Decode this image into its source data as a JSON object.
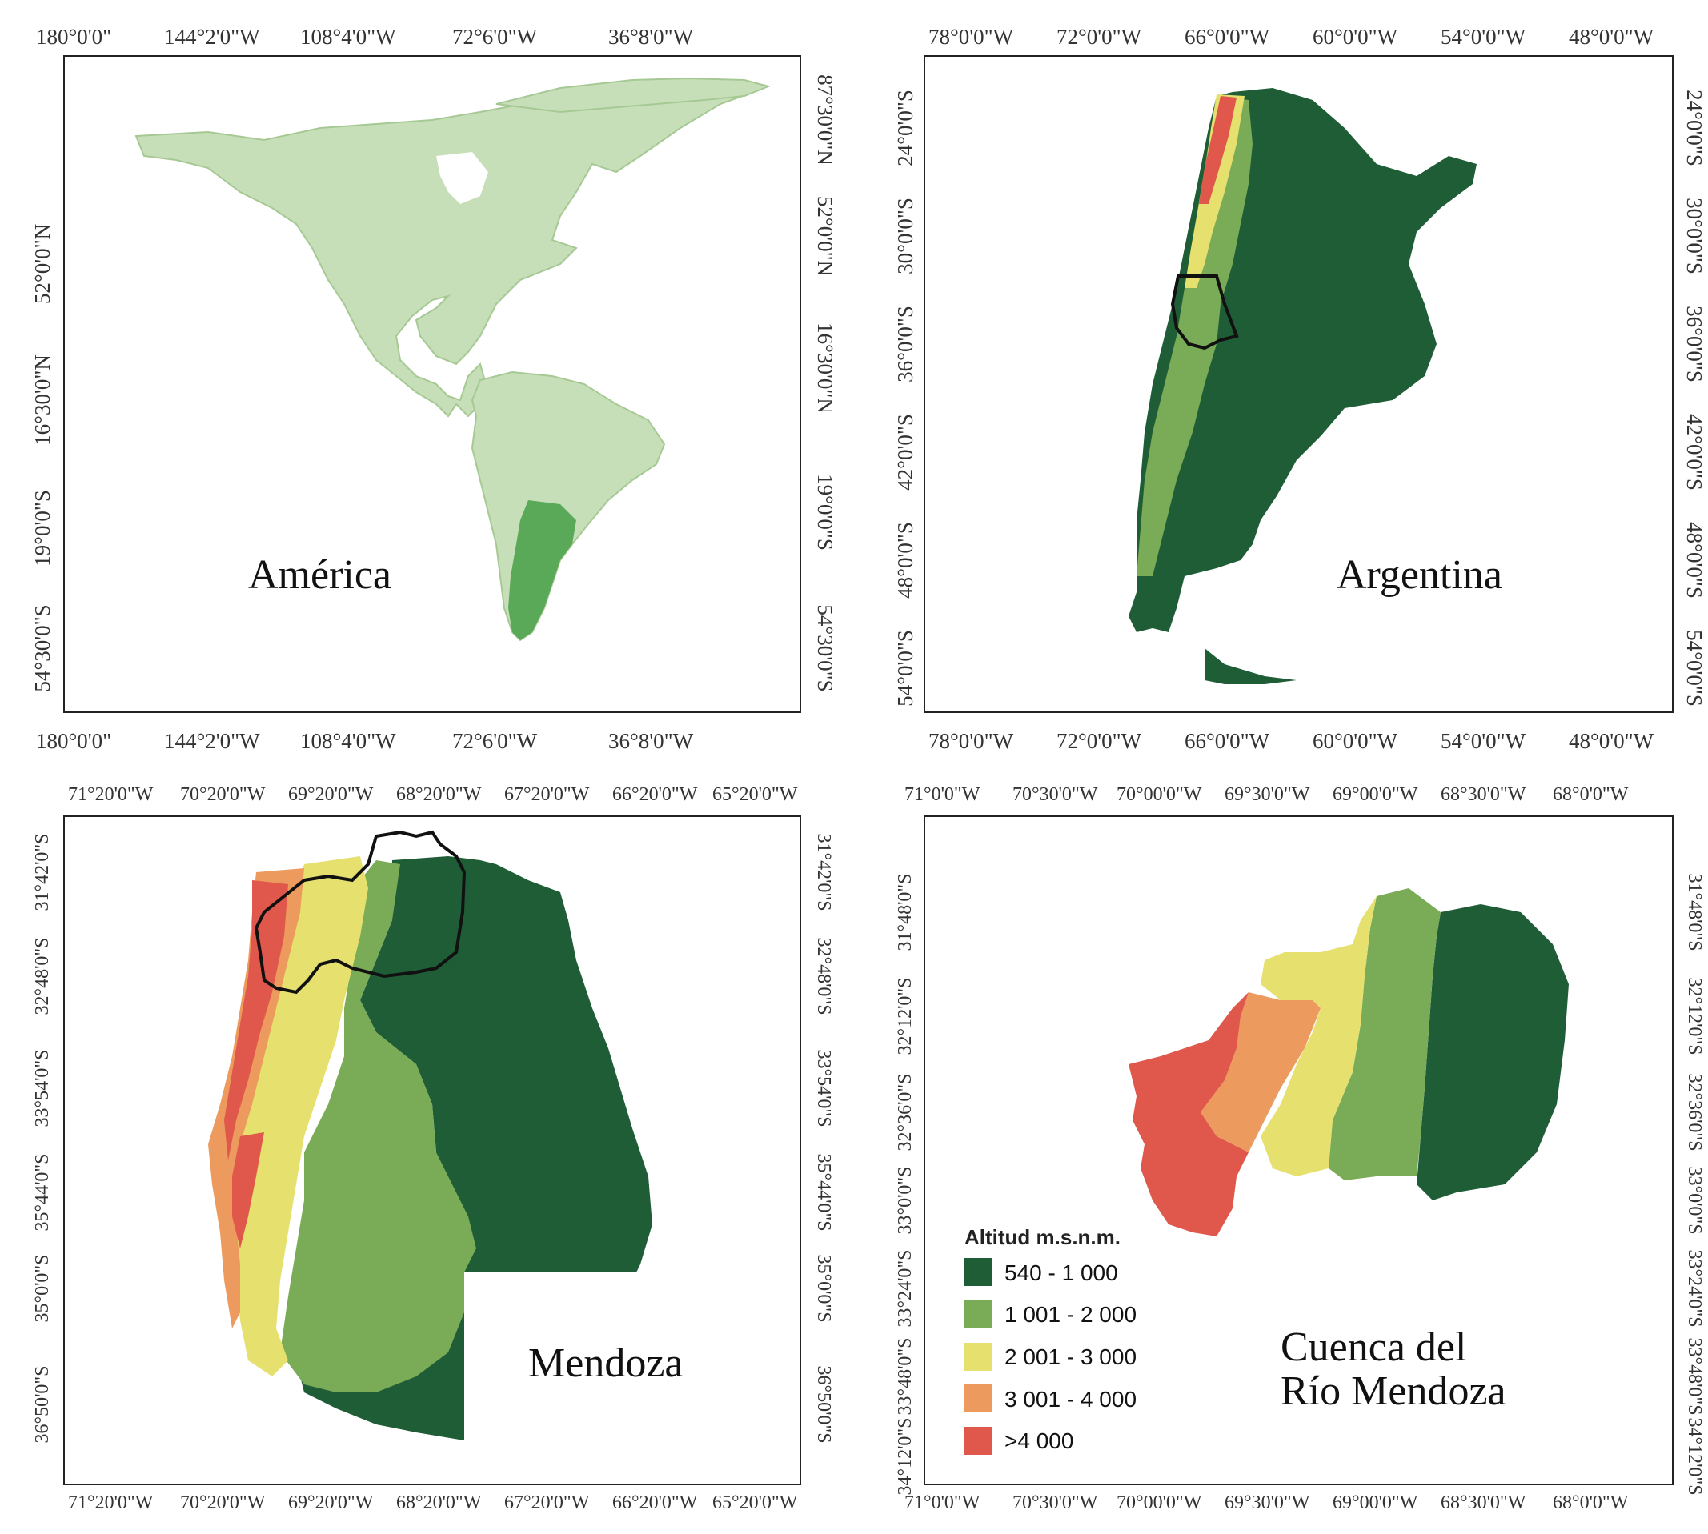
{
  "colors": {
    "america_land": "#c6dfb8",
    "america_land_edge": "#a6c994",
    "argentina_highlight": "#5aa958",
    "elev_540_1000": "#1f5d37",
    "elev_1001_2000": "#7aab56",
    "elev_2001_3000": "#e6e06e",
    "elev_3001_4000": "#ec9a5e",
    "elev_gt4000": "#e0574b",
    "outline": "#111111"
  },
  "panels": {
    "america": {
      "title": "América",
      "top_ticks": [
        "180°0'0\"",
        "144°2'0\"W",
        "108°4'0\"W",
        "72°6'0\"W",
        "36°8'0\"W"
      ],
      "bottom_ticks": [
        "180°0'0\"",
        "144°2'0\"W",
        "108°4'0\"W",
        "72°6'0\"W",
        "36°8'0\"W"
      ],
      "left_ticks": [
        "52°0'0\"N",
        "16°30'0\"N",
        "19°0'0\"S",
        "54°30'0\"S"
      ],
      "right_ticks": [
        "87°30'0\"N",
        "52°0'0\"N",
        "16°30'0\"N",
        "19°0'0\"S",
        "54°30'0\"S"
      ]
    },
    "argentina": {
      "title": "Argentina",
      "top_ticks": [
        "78°0'0\"W",
        "72°0'0\"W",
        "66°0'0\"W",
        "60°0'0\"W",
        "54°0'0\"W",
        "48°0'0\"W"
      ],
      "bottom_ticks": [
        "78°0'0\"W",
        "72°0'0\"W",
        "66°0'0\"W",
        "60°0'0\"W",
        "54°0'0\"W",
        "48°0'0\"W"
      ],
      "left_ticks": [
        "24°0'0\"S",
        "30°0'0\"S",
        "36°0'0\"S",
        "42°0'0\"S",
        "48°0'0\"S",
        "54°0'0\"S"
      ],
      "right_ticks": [
        "24°0'0\"S",
        "30°0'0\"S",
        "36°0'0\"S",
        "42°0'0\"S",
        "48°0'0\"S",
        "54°0'0\"S"
      ]
    },
    "mendoza": {
      "title": "Mendoza",
      "top_ticks": [
        "71°20'0\"W",
        "70°20'0\"W",
        "69°20'0\"W",
        "68°20'0\"W",
        "67°20'0\"W",
        "66°20'0\"W",
        "65°20'0\"W"
      ],
      "bottom_ticks": [
        "71°20'0\"W",
        "70°20'0\"W",
        "69°20'0\"W",
        "68°20'0\"W",
        "67°20'0\"W",
        "66°20'0\"W",
        "65°20'0\"W"
      ],
      "left_ticks": [
        "31°42'0\"S",
        "32°48'0\"S",
        "33°54'0\"S",
        "35°44'0\"S",
        "35°0'0\"S",
        "36°50'0\"S"
      ],
      "right_ticks": [
        "31°42'0\"S",
        "32°48'0\"S",
        "33°54'0\"S",
        "35°44'0\"S",
        "35°0'0\"S",
        "36°50'0\"S"
      ]
    },
    "cuenca": {
      "title_line1": "Cuenca del",
      "title_line2": "Río Mendoza",
      "top_ticks": [
        "71°0'0\"W",
        "70°30'0\"W",
        "70°00'0\"W",
        "69°30'0\"W",
        "69°00'0\"W",
        "68°30'0\"W",
        "68°0'0\"W"
      ],
      "bottom_ticks": [
        "71°0'0\"W",
        "70°30'0\"W",
        "70°00'0\"W",
        "69°30'0\"W",
        "69°00'0\"W",
        "68°30'0\"W",
        "68°0'0\"W"
      ],
      "left_ticks": [
        "31°48'0\"S",
        "32°12'0\"S",
        "32°36'0\"S",
        "33°0'0\"S",
        "33°24'0\"S",
        "33°48'0\"S",
        "34°12'0\"S"
      ],
      "right_ticks": [
        "31°48'0\"S",
        "32°12'0\"S",
        "32°36'0\"S",
        "33°0'0\"S",
        "33°24'0\"S",
        "33°48'0\"S",
        "34°12'0\"S"
      ]
    }
  },
  "legend": {
    "title": "Altitud m.s.n.m.",
    "items": [
      "540 - 1 000",
      "1 001 - 2 000",
      "2 001 - 3 000",
      "3 001 - 4 000",
      ">4 000"
    ]
  }
}
